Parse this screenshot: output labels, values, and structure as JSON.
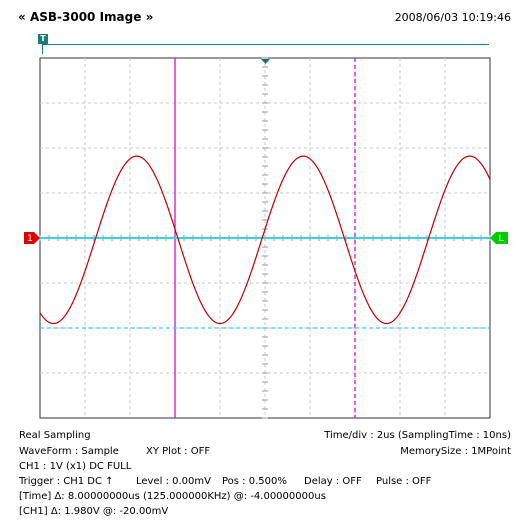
{
  "header": {
    "title": "ASB-3000 Image",
    "chevron_left": "«",
    "chevron_right": "»",
    "timestamp": "2008/06/03 10:19:46",
    "trigger_marker_label": "T"
  },
  "markers": {
    "ch1_label": "1",
    "level_label": "L"
  },
  "colors": {
    "waveform": "#c00000",
    "grid": "#c8c8c8",
    "ground": "#3fd0e0",
    "cursor_time": "#cc00cc",
    "cursor_level": "#3fd0e0",
    "ch1_marker": "#e00000",
    "level_marker": "#00cc00"
  },
  "info": {
    "sampling_mode": "Real Sampling",
    "time_div": "Time/div : 2us (SamplingTime : 10ns)",
    "waveform": "WaveForm : Sample",
    "xy_plot": "XY Plot : OFF",
    "memory_size": "MemorySize : 1MPoint",
    "ch1": "CH1 : 1V (x1)  DC  FULL",
    "trigger": "Trigger : CH1  DC  ↑",
    "level": "Level : 0.00mV",
    "pos": "Pos : 0.500%",
    "delay": "Delay : OFF",
    "pulse": "Pulse : OFF",
    "time_cursor": "[Time]  Δ: 8.00000000us (125.000000KHz)  @: -4.00000000us",
    "ch1_cursor": "[CH1]  Δ: 1.980V  @: -20.00mV"
  },
  "chart_data": {
    "type": "line",
    "grid": true,
    "x_divisions": 10,
    "y_divisions": 8,
    "xlim_div": [
      0,
      10
    ],
    "ylim_div": [
      -4,
      4
    ],
    "series": [
      {
        "waveform": "sine",
        "period_div": 3.7,
        "peak_div": 1.82,
        "trough_div": -1.9,
        "first_peak_div": 2.15
      }
    ],
    "cursors": {
      "time_a_div": 3.0,
      "time_b_div": 7.0,
      "level_a_div": 0.0,
      "level_b_div": -2.0
    }
  }
}
